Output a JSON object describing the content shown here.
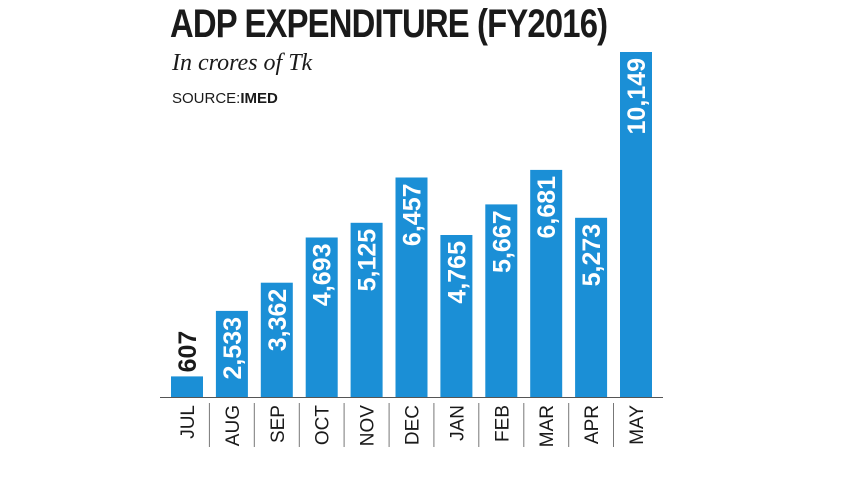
{
  "chart_data": {
    "type": "bar",
    "title": "ADP EXPENDITURE (FY2016)",
    "subtitle": "In crores of Tk",
    "source_prefix": "SOURCE:",
    "source_name": "IMED",
    "categories": [
      "JUL",
      "AUG",
      "SEP",
      "OCT",
      "NOV",
      "DEC",
      "JAN",
      "FEB",
      "MAR",
      "APR",
      "MAY"
    ],
    "values": [
      607,
      2533,
      3362,
      4693,
      5125,
      6457,
      4765,
      5667,
      6681,
      5273,
      10149
    ],
    "value_labels": [
      "607",
      "2,533",
      "3,362",
      "4,693",
      "5,125",
      "6,457",
      "4,765",
      "5,667",
      "6,681",
      "5,273",
      "10,149"
    ],
    "bar_color": "#1b8fd6",
    "ylim": [
      0,
      10149
    ]
  }
}
